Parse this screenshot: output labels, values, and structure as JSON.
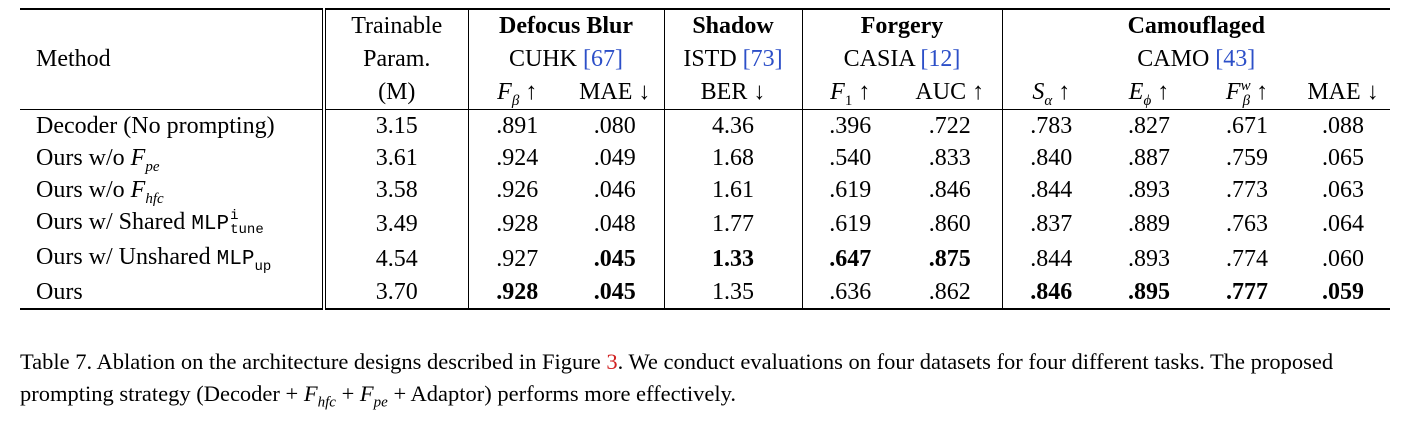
{
  "header": {
    "method": "Method",
    "params_line1": "Trainable",
    "params_line2": "Param.",
    "params_line3": "(M)",
    "groups": [
      {
        "task": "Defocus Blur",
        "dataset": "CUHK",
        "ref": "[67]"
      },
      {
        "task": "Shadow",
        "dataset": "ISTD",
        "ref": "[73]"
      },
      {
        "task": "Forgery",
        "dataset": "CASIA",
        "ref": "[12]"
      },
      {
        "task": "Camouflaged",
        "dataset": "CAMO",
        "ref": "[43]"
      }
    ],
    "metrics": {
      "f_beta": "F",
      "f_beta_sub": "β",
      "mae": "MAE",
      "ber": "BER",
      "f1": "F",
      "f1_sub": "1",
      "auc": "AUC",
      "s_alpha": "S",
      "s_alpha_sub": "α",
      "e_phi": "E",
      "e_phi_sub": "ϕ",
      "f_w": "F",
      "f_w_sup": "w",
      "f_w_sub": "β",
      "up": "↑",
      "down": "↓"
    }
  },
  "rows": [
    {
      "label": "Decoder (No prompting)",
      "values": [
        "3.15",
        ".891",
        ".080",
        "4.36",
        ".396",
        ".722",
        ".783",
        ".827",
        ".671",
        ".088"
      ],
      "bold": []
    },
    {
      "label": "Ours w/o ",
      "label_math": "F",
      "label_sub": "pe",
      "values": [
        "3.61",
        ".924",
        ".049",
        "1.68",
        ".540",
        ".833",
        ".840",
        ".887",
        ".759",
        ".065"
      ],
      "bold": []
    },
    {
      "label": "Ours w/o ",
      "label_math": "F",
      "label_sub": "hfc",
      "values": [
        "3.58",
        ".926",
        ".046",
        "1.61",
        ".619",
        ".846",
        ".844",
        ".893",
        ".773",
        ".063"
      ],
      "bold": []
    },
    {
      "label": "Ours w/ Shared ",
      "label_mono": "MLP",
      "label_mono_sup": "i",
      "label_mono_sub": "tune",
      "values": [
        "3.49",
        ".928",
        ".048",
        "1.77",
        ".619",
        ".860",
        ".837",
        ".889",
        ".763",
        ".064"
      ],
      "bold": []
    },
    {
      "label": "Ours w/ Unshared ",
      "label_mono": "MLP",
      "label_mono_sub": "up",
      "values": [
        "4.54",
        ".927",
        ".045",
        "1.33",
        ".647",
        ".875",
        ".844",
        ".893",
        ".774",
        ".060"
      ],
      "bold": [
        2,
        3,
        4,
        5
      ]
    },
    {
      "label": "Ours",
      "values": [
        "3.70",
        ".928",
        ".045",
        "1.35",
        ".636",
        ".862",
        ".846",
        ".895",
        ".777",
        ".059"
      ],
      "bold": [
        1,
        2,
        6,
        7,
        8,
        9
      ]
    }
  ],
  "caption": {
    "part1": "Table 7. Ablation on the architecture designs described in Figure ",
    "fig_ref": "3",
    "part2": ". We conduct evaluations on four datasets for four different tasks. The proposed prompting strategy (Decoder + ",
    "f_hfc": "F",
    "f_hfc_sub": "hfc",
    "part3": " + ",
    "f_pe": "F",
    "f_pe_sub": "pe",
    "part4": " + Adaptor) performs more effectively."
  }
}
